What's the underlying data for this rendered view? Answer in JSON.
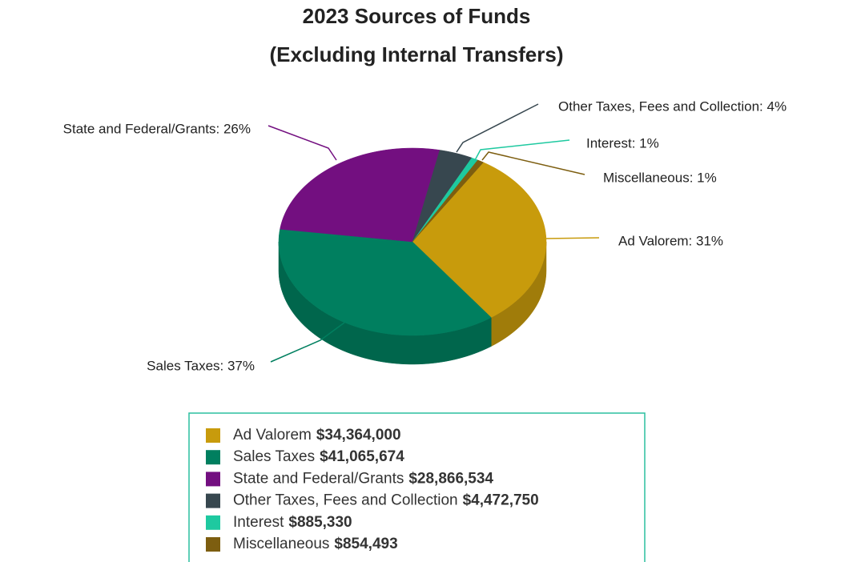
{
  "chart_data": {
    "type": "pie",
    "title": "2023 Sources of Funds",
    "subtitle": "(Excluding Internal Transfers)",
    "categories": [
      "Ad Valorem",
      "Sales Taxes",
      "State and Federal/Grants",
      "Other Taxes, Fees and Collection",
      "Interest",
      "Miscellaneous"
    ],
    "values": [
      34364000,
      41065674,
      28866534,
      4472750,
      885330,
      854493
    ],
    "value_labels": [
      "$34,364,000",
      "$41,065,674",
      "$28,866,534",
      "$4,472,750",
      "$885,330",
      "$854,493"
    ],
    "slice_labels": [
      "Ad Valorem: 31%",
      "Sales Taxes: 37%",
      "State and Federal/Grants: 26%",
      "Other Taxes, Fees and Collection: 4%",
      "Interest: 1%",
      "Miscellaneous: 1%"
    ],
    "colors": [
      "#c89b0c",
      "#007f5f",
      "#730f80",
      "#37474f",
      "#1ec9a0",
      "#7d5e10"
    ]
  }
}
